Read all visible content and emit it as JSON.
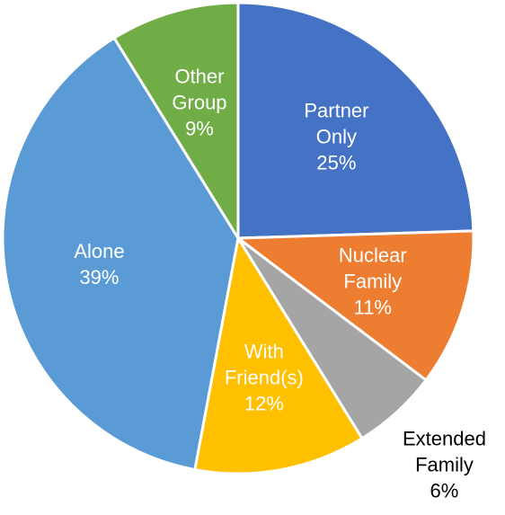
{
  "chart_data": {
    "type": "pie",
    "categories": [
      "Partner Only",
      "Nuclear Family",
      "Extended Family",
      "With Friend(s)",
      "Alone",
      "Other Group"
    ],
    "values": [
      25,
      11,
      6,
      12,
      39,
      9
    ],
    "value_labels": [
      "25%",
      "11%",
      "6%",
      "12%",
      "39%",
      "9%"
    ],
    "colors": [
      "#4472c4",
      "#ed7d31",
      "#a5a5a5",
      "#ffc000",
      "#5b9bd5",
      "#70ad47"
    ],
    "start_angle": 0,
    "direction": "clockwise"
  }
}
